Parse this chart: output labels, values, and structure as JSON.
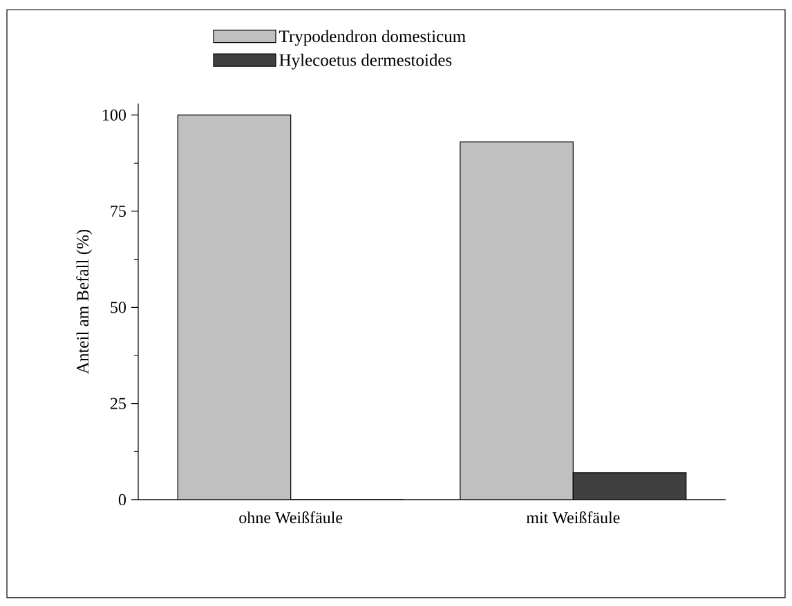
{
  "chart_data": {
    "type": "bar",
    "ylabel": "Anteil am Befall (%)",
    "categories": [
      "ohne Weißfäule",
      "mit Weißfäule"
    ],
    "series": [
      {
        "name": "Trypodendron domesticum",
        "color": "#c0c0c0",
        "values": [
          100,
          93
        ]
      },
      {
        "name": "Hylecoetus dermestoides",
        "color": "#404040",
        "values": [
          0,
          7
        ]
      }
    ],
    "ylim": [
      0,
      103
    ],
    "yticks": [
      0,
      25,
      50,
      75,
      100
    ],
    "grid": false,
    "legend": "top"
  }
}
